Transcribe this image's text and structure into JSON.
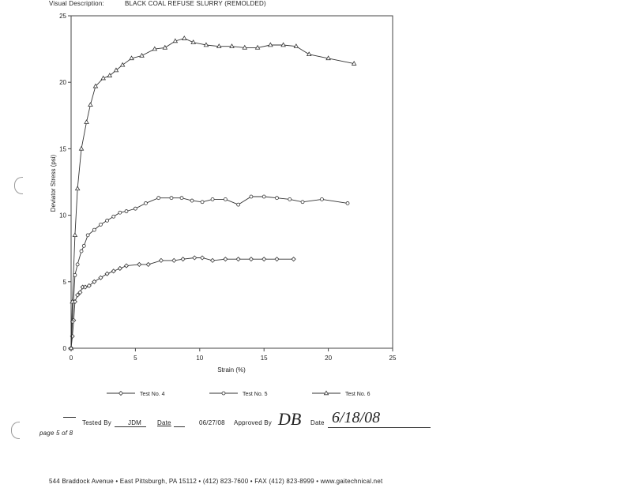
{
  "header": {
    "label": "Visual Description:",
    "description": "BLACK COAL REFUSE SLURRY (REMOLDED)"
  },
  "chart_data": {
    "type": "line",
    "xlabel": "Strain (%)",
    "ylabel": "Deviator Stress (psi)",
    "xlim": [
      0,
      25
    ],
    "ylim": [
      0,
      25
    ],
    "x_ticks": [
      "0",
      "5",
      "10",
      "15",
      "20",
      "25"
    ],
    "y_ticks": [
      "0",
      "5",
      "10",
      "15",
      "20",
      "25"
    ],
    "grid": false,
    "legend_position": "bottom",
    "series": [
      {
        "name": "Test No. 4",
        "marker": "diamond",
        "points": [
          [
            0,
            0
          ],
          [
            0.1,
            0.9
          ],
          [
            0.2,
            2.1
          ],
          [
            0.3,
            3.5
          ],
          [
            0.5,
            4.0
          ],
          [
            0.7,
            4.2
          ],
          [
            0.9,
            4.6
          ],
          [
            1.1,
            4.6
          ],
          [
            1.4,
            4.7
          ],
          [
            1.8,
            5.0
          ],
          [
            2.3,
            5.3
          ],
          [
            2.8,
            5.6
          ],
          [
            3.3,
            5.8
          ],
          [
            3.8,
            6.0
          ],
          [
            4.3,
            6.2
          ],
          [
            5.3,
            6.3
          ],
          [
            6.0,
            6.3
          ],
          [
            7.0,
            6.6
          ],
          [
            8.0,
            6.6
          ],
          [
            8.7,
            6.7
          ],
          [
            9.6,
            6.8
          ],
          [
            10.2,
            6.8
          ],
          [
            11.0,
            6.6
          ],
          [
            12.0,
            6.7
          ],
          [
            13.0,
            6.7
          ],
          [
            14.0,
            6.7
          ],
          [
            15.0,
            6.7
          ],
          [
            16.0,
            6.7
          ],
          [
            17.3,
            6.7
          ]
        ]
      },
      {
        "name": "Test No. 5",
        "marker": "circle",
        "points": [
          [
            0,
            0
          ],
          [
            0.1,
            2.0
          ],
          [
            0.3,
            5.5
          ],
          [
            0.5,
            6.3
          ],
          [
            0.8,
            7.3
          ],
          [
            1.0,
            7.7
          ],
          [
            1.3,
            8.5
          ],
          [
            1.8,
            8.9
          ],
          [
            2.3,
            9.3
          ],
          [
            2.8,
            9.6
          ],
          [
            3.3,
            9.9
          ],
          [
            3.8,
            10.2
          ],
          [
            4.3,
            10.3
          ],
          [
            5.0,
            10.5
          ],
          [
            5.8,
            10.9
          ],
          [
            6.8,
            11.3
          ],
          [
            7.8,
            11.3
          ],
          [
            8.6,
            11.3
          ],
          [
            9.4,
            11.1
          ],
          [
            10.2,
            11.0
          ],
          [
            11.0,
            11.2
          ],
          [
            12.0,
            11.2
          ],
          [
            13.0,
            10.8
          ],
          [
            14.0,
            11.4
          ],
          [
            15.0,
            11.4
          ],
          [
            16.0,
            11.3
          ],
          [
            17.0,
            11.2
          ],
          [
            18.0,
            11.0
          ],
          [
            19.5,
            11.2
          ],
          [
            21.5,
            10.9
          ]
        ]
      },
      {
        "name": "Test No. 6",
        "marker": "triangle",
        "points": [
          [
            0,
            0
          ],
          [
            0.1,
            3.5
          ],
          [
            0.3,
            8.5
          ],
          [
            0.5,
            12.0
          ],
          [
            0.8,
            15.0
          ],
          [
            1.2,
            17.0
          ],
          [
            1.5,
            18.3
          ],
          [
            1.9,
            19.7
          ],
          [
            2.5,
            20.3
          ],
          [
            3.0,
            20.5
          ],
          [
            3.5,
            20.9
          ],
          [
            4.0,
            21.3
          ],
          [
            4.7,
            21.8
          ],
          [
            5.5,
            22.0
          ],
          [
            6.5,
            22.5
          ],
          [
            7.3,
            22.6
          ],
          [
            8.1,
            23.1
          ],
          [
            8.8,
            23.3
          ],
          [
            9.5,
            23.0
          ],
          [
            10.5,
            22.8
          ],
          [
            11.5,
            22.7
          ],
          [
            12.5,
            22.7
          ],
          [
            13.5,
            22.6
          ],
          [
            14.5,
            22.6
          ],
          [
            15.5,
            22.8
          ],
          [
            16.5,
            22.8
          ],
          [
            17.5,
            22.7
          ],
          [
            18.5,
            22.1
          ],
          [
            20.0,
            21.8
          ],
          [
            22.0,
            21.4
          ]
        ]
      }
    ]
  },
  "footer": {
    "tested_by_label": "Tested By",
    "tested_by": "JDM",
    "date_label": "Date",
    "test_date": "06/27/08",
    "approved_by_label": "Approved By",
    "approved_by": "DB",
    "approval_date_label": "Date",
    "approval_date": "6/18/08",
    "page": "page 5 of 8",
    "address": "544 Braddock Avenue  •  East Pittsburgh, PA 15112  •  (412) 823-7600  •  FAX (412) 823-8999  •  www.gaitechnical.net"
  }
}
